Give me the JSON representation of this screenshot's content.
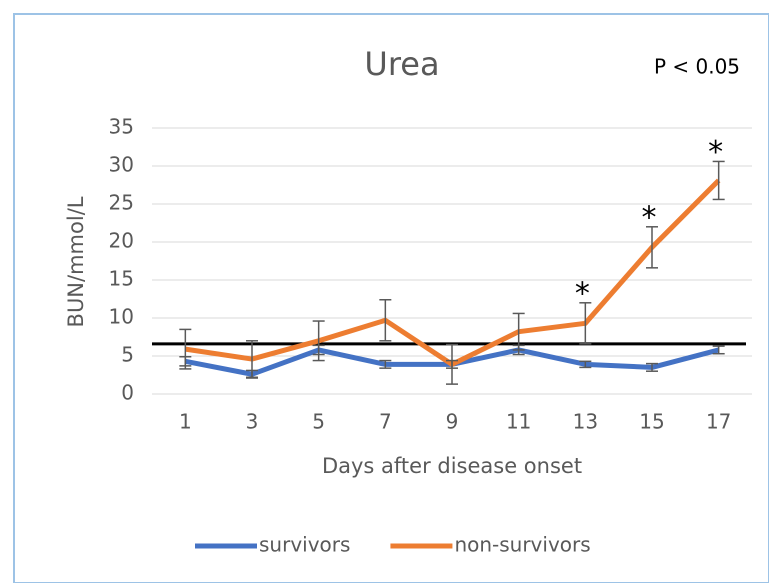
{
  "chart_data": {
    "type": "line",
    "title": "Urea",
    "annotation": "P < 0.05",
    "x_label": "Days after disease onset",
    "y_label": "BUN/mmol/L",
    "x": [
      1,
      3,
      5,
      7,
      9,
      11,
      13,
      15,
      17
    ],
    "xlim": [
      0,
      18
    ],
    "xticks": [
      1,
      3,
      5,
      7,
      9,
      11,
      13,
      15,
      17
    ],
    "ylim": [
      0,
      35
    ],
    "yticks": [
      0,
      5,
      10,
      15,
      20,
      25,
      30,
      35
    ],
    "grid": true,
    "legend": "bottom",
    "reference_line": {
      "value": 6.6,
      "color": "#000000"
    },
    "series": [
      {
        "name": "survivors",
        "color": "#4472c4",
        "values": [
          4.3,
          2.6,
          5.8,
          3.9,
          3.9,
          5.8,
          3.9,
          3.5,
          5.8
        ],
        "errors": [
          0.6,
          0.5,
          0.6,
          0.5,
          0.5,
          0.6,
          0.4,
          0.5,
          0.5
        ]
      },
      {
        "name": "non-survivors",
        "color": "#ed7d31",
        "values": [
          5.9,
          4.6,
          7.0,
          9.7,
          3.9,
          8.2,
          9.3,
          19.3,
          28.1
        ],
        "errors": [
          2.6,
          2.4,
          2.6,
          2.7,
          2.6,
          2.4,
          2.7,
          2.7,
          2.5
        ]
      }
    ],
    "significance_markers": [
      {
        "x": 13,
        "text": "*"
      },
      {
        "x": 15,
        "text": "*"
      },
      {
        "x": 17,
        "text": "*"
      }
    ]
  }
}
